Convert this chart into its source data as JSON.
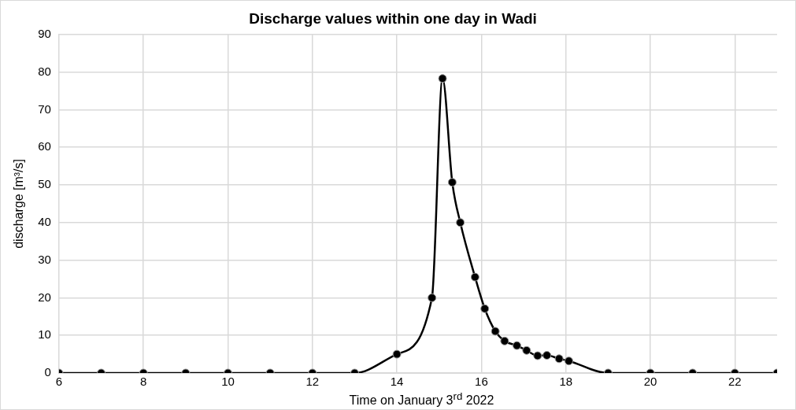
{
  "chart_data": {
    "type": "line",
    "title": "Discharge values within one day in Wadi",
    "xlabel": "Time on January 3$^{rd}$ 2022",
    "ylabel": "discharge [m³/s]",
    "x": [
      6,
      7,
      8,
      9,
      10,
      11,
      12,
      13,
      14,
      14.83,
      15.08,
      15.31,
      15.5,
      15.85,
      16.08,
      16.33,
      16.55,
      16.84,
      17.07,
      17.33,
      17.55,
      17.84,
      18.07,
      19,
      20,
      21,
      22,
      23
    ],
    "series": [
      {
        "color": "#000000",
        "values": [
          0,
          0,
          0,
          0,
          0,
          0,
          0,
          0,
          5,
          20,
          78.3,
          50.7,
          40,
          25.5,
          17.1,
          11.1,
          8.5,
          7.3,
          6,
          4.6,
          4.7,
          3.8,
          3.2,
          0,
          0,
          0,
          0,
          0
        ]
      }
    ],
    "xlim": [
      6,
      23
    ],
    "xticks": [
      6,
      8,
      10,
      12,
      14,
      16,
      18,
      20,
      22
    ],
    "ylim": [
      0,
      90
    ],
    "yticks": [
      0,
      10,
      20,
      30,
      40,
      50,
      60,
      70,
      80,
      90
    ],
    "grid": true,
    "legend": false,
    "marker": "circle",
    "line_style": "solid"
  }
}
